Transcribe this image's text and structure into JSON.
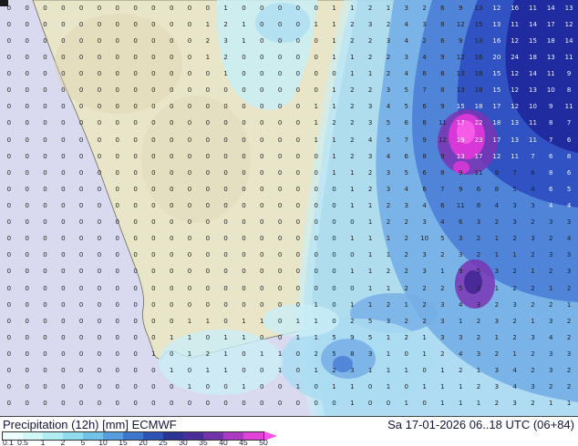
{
  "map": {
    "ocean_color": "#d9daf0",
    "land_color": "#e9e5c9",
    "coast_color": "#6b6b5a",
    "terrain_shade_color": "#ddd5b0",
    "precip_colors": {
      "light_cyan": "#c9eef6",
      "pale_blue": "#aadcf2",
      "medium_blue": "#74aee6",
      "deep_blue": "#4a7ed6",
      "dark_blue": "#2e4ec0",
      "indigo": "#20289c",
      "purple": "#7a34b4",
      "dark_purple": "#4a2a98",
      "magenta": "#d838d8",
      "bright_magenta": "#f55ae8"
    },
    "grid": {
      "cols": 32,
      "rows": 25,
      "text_color": "#222222",
      "light_text_color": "#eef3ff",
      "light_regions": [
        {
          "c0": 27,
          "c1": 31,
          "r0": 0,
          "r1": 9
        },
        {
          "c0": 25,
          "c1": 26,
          "r0": 6,
          "r1": 9
        },
        {
          "c0": 30,
          "c1": 31,
          "r0": 10,
          "r1": 12
        }
      ],
      "values": [
        "0 0 0 0 0 0 0 0 0 0 0 0 1 0 0 0 0 0 1 1 2 1 3 2 6 9 13 12 16 11 14 13",
        "0 0 0 0 0 0 0 0 0 0 0 1 2 1 0 0 0 1 1 2 3 2 4 3 8 12 15 13 11 14 17 12",
        "0 0 0 0 0 0 0 0 0 0 0 2 3 1 0 0 0 0 1 2 2 3 4 2 6 9 13 16 12 15 18 14",
        "0 0 0 0 0 0 0 0 0 0 0 1 2 0 0 0 0 0 1 1 2 2 3 4 9 12 16 20 24 18 13 11",
        "0 0 0 0 0 0 0 0 0 0 0 0 1 0 0 0 0 0 0 1 1 2 4 6 8 13 16 15 12 14 11 9",
        "0 0 0 0 0 0 0 0 0 0 0 0 0 0 0 0 0 0 1 2 2 3 5 7 8 13 18 15 12 13 10 8",
        "0 0 0 0 0 0 0 0 0 0 0 0 0 0 0 0 0 1 1 2 3 4 5 6 9 15 18 17 12 10 9 11",
        "0 0 0 0 0 0 0 0 0 0 0 0 0 0 0 0 0 1 2 2 3 5 6 8 11 17 22 18 13 11 8 7",
        "0 0 0 0 0 0 0 0 0 0 0 0 0 0 0 0 0 1 1 2 4 5 7 9 12 19 23 17 13 11 7 6",
        "0 0 0 0 0 0 0 0 0 0 0 0 0 0 0 0 0 0 1 2 3 4 6 8 9 13 17 12 11 7 6 8",
        "0 0 0 0 0 0 0 0 0 0 0 0 0 0 0 0 0 0 1 1 2 3 5 6 8 9 11 9 7 6 8 6",
        "0 0 0 0 0 0 0 0 0 0 0 0 0 0 0 0 0 0 0 1 2 3 4 6 7 9 6 8 5 4 6 5",
        "0 0 0 0 0 0 0 0 0 0 0 0 0 0 0 0 0 0 0 1 1 2 3 4 6 11 8 4 3 3 4 4",
        "0 0 0 0 0 0 0 0 0 0 0 0 0 0 0 0 0 0 0 0 1 2 2 3 4 6 3 2 3 2 3 3",
        "0 0 0 0 0 0 0 0 0 0 0 0 0 0 0 0 0 0 0 1 1 1 2 10 5 3 2 1 2 3 2 4",
        "0 0 0 0 0 0 0 0 0 0 0 0 0 0 0 0 0 0 0 0 1 1 2 3 2 3 2 1 1 2 3 3",
        "0 0 0 0 0 0 0 0 0 0 0 0 0 0 0 0 0 0 0 1 1 2 2 3 1 9 5 3 2 1 2 3",
        "0 0 0 0 0 0 0 0 0 0 0 0 0 0 0 0 0 0 0 0 1 1 2 2 2 5 3 1 2 2 1 2",
        "0 0 0 0 0 0 0 0 0 0 0 0 0 0 0 0 0 1 0 1 1 2 1 2 3 4 3 2 3 2 2 1",
        "0 0 0 0 0 0 0 0 0 0 1 1 0 1 1 0 1 1 0 2 5 3 2 2 3 1 2 3 2 1 3 2",
        "0 0 0 0 0 0 0 0 0 1 1 0 1 1 0 0 1 1 5 9 5 1 2 1 3 3 2 1 2 3 4 2",
        "0 0 0 0 0 0 0 0 1 0 1 2 1 0 1 1 0 2 5 8 3 1 0 1 2 4 3 2 1 2 3 3",
        "0 0 0 0 0 0 0 0 0 1 0 1 1 0 0 1 0 1 2 3 1 1 1 0 1 2 1 3 4 2 3 2",
        "0 0 0 0 0 0 0 0 0 0 1 0 0 1 0 0 1 0 1 1 0 1 0 1 1 1 2 3 4 3 2 2",
        "0 0 0 0 0 0 0 0 0 0 0 0 0 0 0 0 0 0 0 1 0 0 1 0 1 1 1 2 3 2 1 1"
      ]
    }
  },
  "legend": {
    "title": "Precipitation (12h) [mm] ECMWF",
    "datetime": "Sa 17-01-2026 06..18 UTC (06+84)",
    "scale_labels": [
      "0.1",
      "0.5",
      "1",
      "2",
      "5",
      "10",
      "15",
      "20",
      "25",
      "30",
      "35",
      "40",
      "45",
      "50"
    ],
    "scale_colors": [
      "#edfdfd",
      "#d2f7f7",
      "#b0eef3",
      "#90dcee",
      "#70c2e6",
      "#569ede",
      "#3e76ce",
      "#2e52b6",
      "#2a3492",
      "#4a2e98",
      "#7232aa",
      "#aa3ac2",
      "#e242da"
    ],
    "arrow_color": "#fa50ea"
  }
}
